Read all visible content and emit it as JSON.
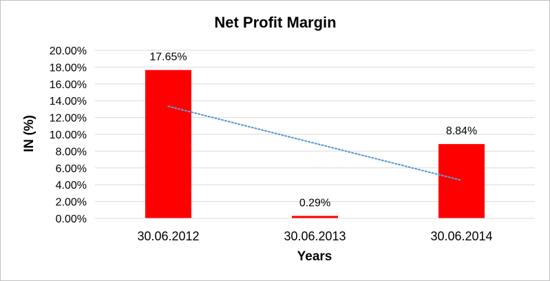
{
  "chart_data": {
    "type": "bar",
    "title": "Net Profit Margin",
    "xlabel": "Years",
    "ylabel": "IN (%)",
    "categories": [
      "30.06.2012",
      "30.06.2013",
      "30.06.2014"
    ],
    "series": [
      {
        "values": [
          17.65,
          0.29,
          8.84
        ],
        "data_labels": [
          "17.65%",
          "0.29%",
          "8.84%"
        ],
        "color": "#ff0000"
      }
    ],
    "ylim": [
      0,
      20
    ],
    "ytick_labels": [
      "0.00%",
      "2.00%",
      "4.00%",
      "6.00%",
      "8.00%",
      "10.00%",
      "12.00%",
      "14.00%",
      "16.00%",
      "18.00%",
      "20.00%"
    ],
    "grid": true,
    "gridline_color": "#d9d9d9",
    "trendline": {
      "type": "linear",
      "style": "dotted",
      "color": "#5b9bd5"
    },
    "legend": "none"
  }
}
